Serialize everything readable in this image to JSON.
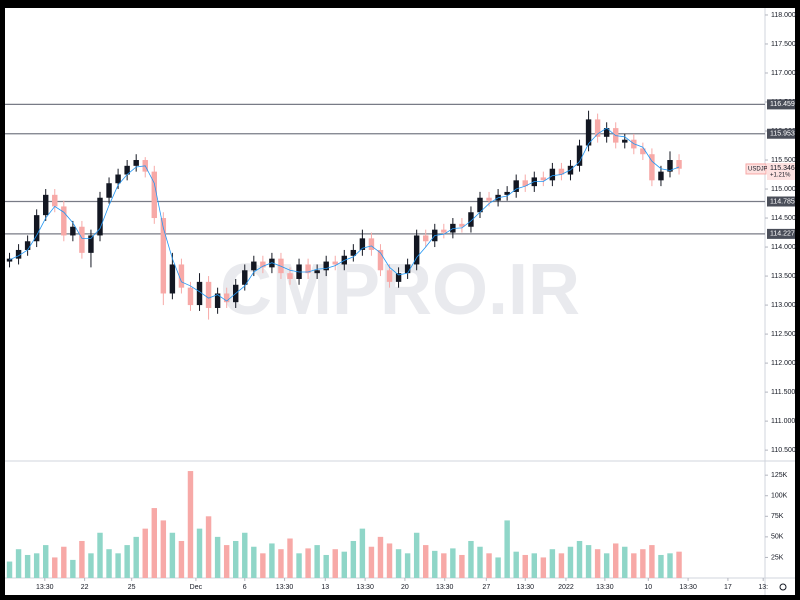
{
  "chart_data": {
    "type": "candlestick",
    "symbol": "USDJPY",
    "last_price": 115.346,
    "change": "+1.21%",
    "watermark": "CMPRO.IR",
    "up_color": "#131722",
    "down_color": "#f7a9a7",
    "volume_up_color": "#8fd6c8",
    "volume_down_color": "#f7a9a7",
    "level_color": "#787b86",
    "levels": [
      116.459,
      115.953,
      114.785,
      114.227
    ],
    "x": [
      0,
      1,
      2,
      3,
      4,
      5,
      6,
      7,
      8,
      9,
      10,
      11,
      12,
      13,
      14,
      15,
      16,
      17,
      18,
      19,
      20,
      21,
      22,
      23,
      24,
      25,
      26,
      27,
      28,
      29,
      30,
      31,
      32,
      33,
      34,
      35,
      36,
      37,
      38,
      39,
      40,
      41,
      42,
      43,
      44,
      45,
      46,
      47,
      48,
      49,
      50,
      51,
      52,
      53,
      54,
      55,
      56,
      57,
      58,
      59,
      60,
      61,
      62,
      63,
      64,
      65,
      66,
      67,
      68,
      69,
      70,
      71,
      72,
      73,
      74
    ],
    "open": [
      113.75,
      113.8,
      113.95,
      114.1,
      114.55,
      114.9,
      114.7,
      114.2,
      114.35,
      113.9,
      114.2,
      114.85,
      115.1,
      115.25,
      115.4,
      115.5,
      115.3,
      114.5,
      113.2,
      113.7,
      113.3,
      113.0,
      113.4,
      112.95,
      113.2,
      113.05,
      113.35,
      113.6,
      113.75,
      113.65,
      113.8,
      113.55,
      113.45,
      113.7,
      113.55,
      113.6,
      113.75,
      113.7,
      113.85,
      113.95,
      114.15,
      113.95,
      113.6,
      113.4,
      113.55,
      113.7,
      114.2,
      114.1,
      114.3,
      114.25,
      114.4,
      114.35,
      114.6,
      114.85,
      114.8,
      114.9,
      114.95,
      115.15,
      115.05,
      115.2,
      115.15,
      115.35,
      115.25,
      115.4,
      115.75,
      116.2,
      115.9,
      116.05,
      115.8,
      115.85,
      115.7,
      115.6,
      115.15,
      115.3,
      115.5
    ],
    "high": [
      113.9,
      114.05,
      114.2,
      114.65,
      115.0,
      115.0,
      114.8,
      114.45,
      114.45,
      114.3,
      114.95,
      115.2,
      115.35,
      115.5,
      115.6,
      115.55,
      115.4,
      114.6,
      113.9,
      113.8,
      113.4,
      113.55,
      113.5,
      113.3,
      113.3,
      113.45,
      113.7,
      113.85,
      113.85,
      113.9,
      113.9,
      113.65,
      113.8,
      113.8,
      113.7,
      113.85,
      113.85,
      113.95,
      114.05,
      114.3,
      114.25,
      114.05,
      113.7,
      113.65,
      113.8,
      114.3,
      114.3,
      114.4,
      114.4,
      114.5,
      114.5,
      114.7,
      114.95,
      114.95,
      115.0,
      115.05,
      115.25,
      115.25,
      115.3,
      115.3,
      115.45,
      115.45,
      115.5,
      115.85,
      116.35,
      116.3,
      116.15,
      116.15,
      115.95,
      115.95,
      115.8,
      115.7,
      115.4,
      115.65,
      115.6
    ],
    "low": [
      113.65,
      113.7,
      113.85,
      114.0,
      114.45,
      114.6,
      114.1,
      114.1,
      113.8,
      113.65,
      114.1,
      114.75,
      115.0,
      115.15,
      115.3,
      115.2,
      114.4,
      113.0,
      113.1,
      113.2,
      112.9,
      112.9,
      112.75,
      112.85,
      112.95,
      112.95,
      113.25,
      113.5,
      113.55,
      113.55,
      113.45,
      113.35,
      113.35,
      113.45,
      113.45,
      113.5,
      113.6,
      113.6,
      113.75,
      113.85,
      113.85,
      113.5,
      113.3,
      113.3,
      113.45,
      113.6,
      114.0,
      114.0,
      114.15,
      114.15,
      114.25,
      114.25,
      114.5,
      114.7,
      114.7,
      114.8,
      114.85,
      114.95,
      114.95,
      115.05,
      115.05,
      115.15,
      115.15,
      115.3,
      115.65,
      115.8,
      115.8,
      115.7,
      115.7,
      115.6,
      115.5,
      115.05,
      115.05,
      115.2,
      115.25
    ],
    "close": [
      113.8,
      113.95,
      114.1,
      114.55,
      114.9,
      114.7,
      114.2,
      114.35,
      113.9,
      114.2,
      114.85,
      115.1,
      115.25,
      115.4,
      115.5,
      115.3,
      114.5,
      113.2,
      113.7,
      113.3,
      113.0,
      113.4,
      112.95,
      113.2,
      113.05,
      113.35,
      113.6,
      113.75,
      113.65,
      113.8,
      113.55,
      113.45,
      113.7,
      113.55,
      113.6,
      113.75,
      113.7,
      113.85,
      113.95,
      114.15,
      113.95,
      113.6,
      113.4,
      113.55,
      113.7,
      114.2,
      114.1,
      114.3,
      114.25,
      114.4,
      114.35,
      114.6,
      114.85,
      114.8,
      114.9,
      114.95,
      115.15,
      115.05,
      115.2,
      115.15,
      115.35,
      115.25,
      115.4,
      115.75,
      116.2,
      115.9,
      116.05,
      115.8,
      115.85,
      115.7,
      115.6,
      115.15,
      115.3,
      115.5,
      115.35
    ],
    "moving_average": {
      "color": "#2196f3",
      "values": [
        113.78,
        113.85,
        113.95,
        114.2,
        114.5,
        114.7,
        114.6,
        114.42,
        114.15,
        114.15,
        114.32,
        114.72,
        115.07,
        115.25,
        115.38,
        115.4,
        115.1,
        114.33,
        113.8,
        113.4,
        113.33,
        113.23,
        113.12,
        113.18,
        113.07,
        113.2,
        113.33,
        113.57,
        113.67,
        113.73,
        113.67,
        113.6,
        113.57,
        113.57,
        113.62,
        113.63,
        113.68,
        113.77,
        113.83,
        113.98,
        114.02,
        113.9,
        113.65,
        113.52,
        113.55,
        113.82,
        114.0,
        114.2,
        114.22,
        114.32,
        114.33,
        114.45,
        114.6,
        114.75,
        114.85,
        114.88,
        115.0,
        115.05,
        115.13,
        115.13,
        115.23,
        115.25,
        115.33,
        115.47,
        115.78,
        115.95,
        116.05,
        115.92,
        115.9,
        115.78,
        115.72,
        115.48,
        115.35,
        115.32,
        115.38
      ]
    },
    "volume": [
      20000,
      35000,
      28000,
      30000,
      40000,
      25000,
      38000,
      22000,
      45000,
      30000,
      55000,
      35000,
      30000,
      40000,
      50000,
      60000,
      85000,
      70000,
      55000,
      45000,
      130000,
      60000,
      75000,
      50000,
      40000,
      45000,
      55000,
      38000,
      30000,
      42000,
      35000,
      48000,
      30000,
      36000,
      40000,
      28000,
      35000,
      32000,
      45000,
      60000,
      38000,
      50000,
      42000,
      35000,
      30000,
      55000,
      40000,
      33000,
      30000,
      36000,
      28000,
      45000,
      38000,
      30000,
      25000,
      70000,
      32000,
      28000,
      30000,
      25000,
      35000,
      30000,
      38000,
      45000,
      40000,
      35000,
      30000,
      42000,
      38000,
      30000,
      35000,
      40000,
      28000,
      30000,
      32000
    ],
    "xlim": [
      -0.5,
      83.5
    ],
    "ylim": [
      110.33,
      118.12
    ],
    "volume_ylim": [
      0,
      141000
    ],
    "xticks": [
      {
        "value": 3.9,
        "label": "13:30"
      },
      {
        "value": 8.3,
        "label": "22"
      },
      {
        "value": 13.5,
        "label": "25"
      },
      {
        "value": 20.6,
        "label": "Dec"
      },
      {
        "value": 26.0,
        "label": "6"
      },
      {
        "value": 30.4,
        "label": "13:30"
      },
      {
        "value": 34.9,
        "label": "13"
      },
      {
        "value": 39.3,
        "label": "13:30"
      },
      {
        "value": 43.7,
        "label": "20"
      },
      {
        "value": 48.1,
        "label": "13:30"
      },
      {
        "value": 52.7,
        "label": "27"
      },
      {
        "value": 57.0,
        "label": "13:30"
      },
      {
        "value": 61.5,
        "label": "2022"
      },
      {
        "value": 65.8,
        "label": "13:30"
      },
      {
        "value": 70.6,
        "label": "10"
      },
      {
        "value": 75.0,
        "label": "13:30"
      },
      {
        "value": 79.4,
        "label": "17"
      },
      {
        "value": 83.3,
        "label": "13:"
      }
    ],
    "yticks": [
      {
        "value": 118,
        "label": "118.000"
      },
      {
        "value": 117.5,
        "label": "117.500"
      },
      {
        "value": 117,
        "label": "117.000"
      },
      {
        "value": 116.5,
        "label": "116.500"
      },
      {
        "value": 116,
        "label": "116.000"
      },
      {
        "value": 115.5,
        "label": "115.500"
      },
      {
        "value": 115,
        "label": "115.000"
      },
      {
        "value": 114.5,
        "label": "114.500"
      },
      {
        "value": 114,
        "label": "114.000"
      },
      {
        "value": 113.5,
        "label": "113.500"
      },
      {
        "value": 113,
        "label": "113.000"
      },
      {
        "value": 112.5,
        "label": "112.500"
      },
      {
        "value": 112,
        "label": "112.000"
      },
      {
        "value": 111.5,
        "label": "111.500"
      },
      {
        "value": 111,
        "label": "111.000"
      },
      {
        "value": 110.5,
        "label": "110.500"
      }
    ],
    "volume_yticks": [
      {
        "value": 25000,
        "label": "25K"
      },
      {
        "value": 50000,
        "label": "50K"
      },
      {
        "value": 75000,
        "label": "75K"
      },
      {
        "value": 100000,
        "label": "100K"
      },
      {
        "value": 125000,
        "label": "125K"
      }
    ]
  }
}
